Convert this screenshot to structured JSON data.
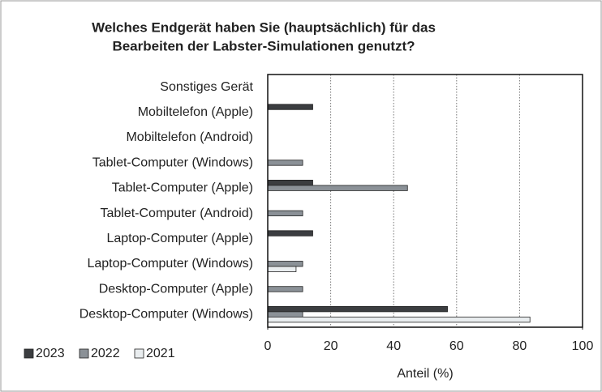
{
  "chart_data": {
    "type": "barh",
    "title": [
      "Welches Endgerät haben Sie (hauptsächlich) für das",
      "Bearbeiten der Labster-Simulationen genutzt?"
    ],
    "categories": [
      "Sonstiges Gerät",
      "Mobiltelefon (Apple)",
      "Mobiltelefon (Android)",
      "Tablet-Computer (Windows)",
      "Tablet-Computer (Apple)",
      "Tablet-Computer (Android)",
      "Laptop-Computer (Apple)",
      "Laptop-Computer (Windows)",
      "Desktop-Computer (Apple)",
      "Desktop-Computer (Windows)"
    ],
    "series": [
      {
        "name": "2023",
        "color": "#3b3d40",
        "values": [
          0,
          14.3,
          0,
          0,
          14.3,
          0,
          14.3,
          0,
          0,
          57.1
        ]
      },
      {
        "name": "2022",
        "color": "#8b9197",
        "values": [
          0,
          0,
          0,
          11.1,
          44.4,
          11.1,
          0,
          11.1,
          11.1,
          11.1
        ]
      },
      {
        "name": "2021",
        "color": "#e9edef",
        "values": [
          0,
          0,
          0,
          0,
          0,
          0,
          0,
          9,
          0,
          83.3
        ]
      }
    ],
    "xlabel": "Anteil (%)",
    "xlim": [
      0,
      100
    ],
    "xticks": [
      0,
      20,
      40,
      60,
      80,
      100
    ],
    "grid": true
  }
}
